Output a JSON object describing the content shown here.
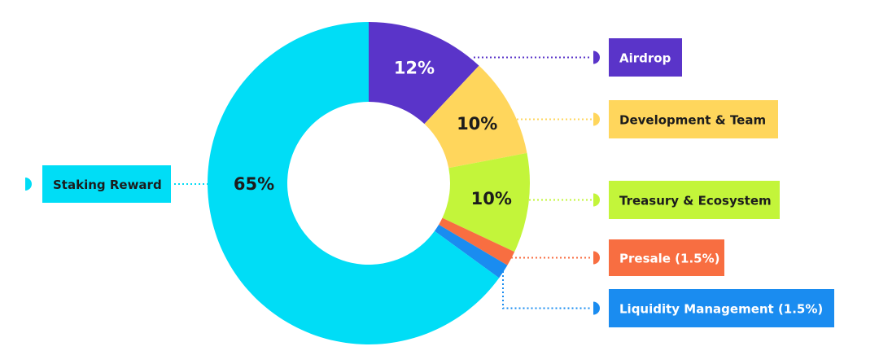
{
  "chart_data": {
    "type": "pie",
    "donut": true,
    "title": "",
    "categories": [
      "Airdrop",
      "Development & Team",
      "Treasury & Ecosystem",
      "Presale (1.5%)",
      "Liquidity Management (1.5%)",
      "Staking Reward"
    ],
    "values": [
      12,
      10,
      10,
      1.5,
      1.5,
      65
    ],
    "slice_labels": [
      "12%",
      "10%",
      "10%",
      "",
      "",
      "65%"
    ],
    "colors": [
      "#5a34c9",
      "#ffd65c",
      "#c3f53a",
      "#f86e41",
      "#1a8cf0",
      "#00ddf6"
    ],
    "label_colors": [
      "#ffffff",
      "#1c1c1c",
      "#1c1c1c",
      "#1c1c1c",
      "#1c1c1c",
      "#1c1c1c"
    ],
    "legend_text_colors": [
      "#ffffff",
      "#1c1c1c",
      "#1c1c1c",
      "#ffffff",
      "#ffffff",
      "#1c1c1c"
    ],
    "legend_placement": "right-and-left"
  }
}
